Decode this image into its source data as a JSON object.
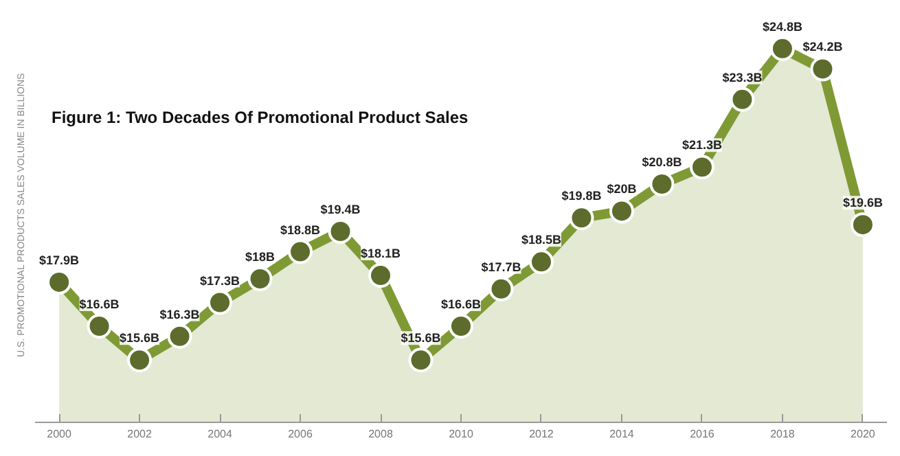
{
  "chart_data": {
    "type": "area",
    "title": "Figure 1: Two Decades Of Promotional Product Sales",
    "ylabel": "U.S. PROMOTIONAL PRODUCTS SALES VOLUME IN BILLIONS",
    "x": [
      2000,
      2001,
      2002,
      2003,
      2004,
      2005,
      2006,
      2007,
      2008,
      2009,
      2010,
      2011,
      2012,
      2013,
      2014,
      2015,
      2016,
      2017,
      2018,
      2019,
      2020
    ],
    "series": [
      {
        "color": "#7f9a35",
        "values": [
          17.9,
          16.6,
          15.6,
          16.3,
          17.3,
          18,
          18.8,
          19.4,
          18.1,
          15.6,
          16.6,
          17.7,
          18.5,
          19.8,
          20,
          20.8,
          21.3,
          23.3,
          24.8,
          24.2,
          19.6
        ],
        "value_labels": [
          "$17.9B",
          "$16.6B",
          "$15.6B",
          "$16.3B",
          "$17.3B",
          "$18B",
          "$18.8B",
          "$19.4B",
          "$18.1B",
          "$15.6B",
          "$16.6B",
          "$17.7B",
          "$18.5B",
          "$19.8B",
          "$20B",
          "$20.8B",
          "$21.3B",
          "$23.3B",
          "$24.8B",
          "$24.2B",
          "$19.6B"
        ]
      }
    ],
    "xlim": [
      1999.4,
      2020.6
    ],
    "xticks": [
      2000,
      2002,
      2004,
      2006,
      2008,
      2010,
      2012,
      2014,
      2016,
      2018,
      2020
    ],
    "tick_labels": "x",
    "grid": false,
    "marker": "circle",
    "line_style": "solid"
  }
}
